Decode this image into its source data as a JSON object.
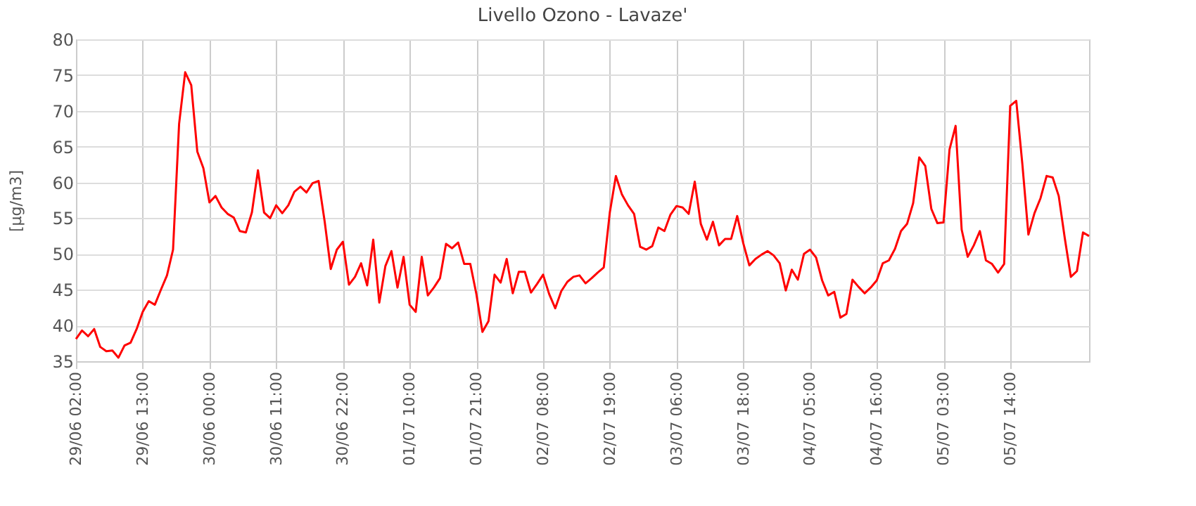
{
  "chart_data": {
    "type": "line",
    "title": "Livello Ozono - Lavaze'",
    "ylabel": "[µg/m3]",
    "categories": [
      "29/06 02:00",
      null,
      null,
      null,
      null,
      null,
      null,
      null,
      null,
      null,
      null,
      "29/06 13:00",
      null,
      null,
      null,
      null,
      null,
      null,
      null,
      null,
      null,
      null,
      "30/06 00:00",
      null,
      null,
      null,
      null,
      null,
      null,
      null,
      null,
      null,
      null,
      "30/06 11:00",
      null,
      null,
      null,
      null,
      null,
      null,
      null,
      null,
      null,
      null,
      "30/06 22:00",
      null,
      null,
      null,
      null,
      null,
      null,
      null,
      null,
      null,
      null,
      "01/07 10:00",
      null,
      null,
      null,
      null,
      null,
      null,
      null,
      null,
      null,
      null,
      "01/07 21:00",
      null,
      null,
      null,
      null,
      null,
      null,
      null,
      null,
      null,
      null,
      "02/07 08:00",
      null,
      null,
      null,
      null,
      null,
      null,
      null,
      null,
      null,
      null,
      "02/07 19:00",
      null,
      null,
      null,
      null,
      null,
      null,
      null,
      null,
      null,
      null,
      "03/07 06:00",
      null,
      null,
      null,
      null,
      null,
      null,
      null,
      null,
      null,
      null,
      "03/07 18:00",
      null,
      null,
      null,
      null,
      null,
      null,
      null,
      null,
      null,
      null,
      "04/07 05:00",
      null,
      null,
      null,
      null,
      null,
      null,
      null,
      null,
      null,
      null,
      "04/07 16:00",
      null,
      null,
      null,
      null,
      null,
      null,
      null,
      null,
      null,
      null,
      "05/07 03:00",
      null,
      null,
      null,
      null,
      null,
      null,
      null,
      null,
      null,
      null,
      "05/07 14:00",
      null,
      null,
      null,
      null,
      null,
      null,
      null,
      null,
      null,
      null,
      null,
      null,
      null
    ],
    "series": [
      {
        "color": "#ff0000",
        "values": [
          38.1,
          39.3,
          38.5,
          39.5,
          37.0,
          36.4,
          36.5,
          35.5,
          37.2,
          37.6,
          39.5,
          41.9,
          43.4,
          42.9,
          45.0,
          47.0,
          50.6,
          68.2,
          75.4,
          73.6,
          64.3,
          62.0,
          57.2,
          58.1,
          56.5,
          55.6,
          55.1,
          53.2,
          53.0,
          55.8,
          61.7,
          55.8,
          55.0,
          56.8,
          55.7,
          56.8,
          58.7,
          59.4,
          58.6,
          59.9,
          60.2,
          54.5,
          47.9,
          50.6,
          51.7,
          45.7,
          46.8,
          48.7,
          45.6,
          52.0,
          43.2,
          48.3,
          50.4,
          45.3,
          49.6,
          42.9,
          41.9,
          49.6,
          44.2,
          45.3,
          46.6,
          51.4,
          50.8,
          51.6,
          48.6,
          48.6,
          44.4,
          39.1,
          40.6,
          47.1,
          46.0,
          49.3,
          44.5,
          47.5,
          47.5,
          44.6,
          45.8,
          47.1,
          44.4,
          42.4,
          44.8,
          46.1,
          46.8,
          47.0,
          45.9,
          46.6,
          47.4,
          48.1,
          55.8,
          60.9,
          58.3,
          56.8,
          55.6,
          51.0,
          50.6,
          51.1,
          53.7,
          53.2,
          55.5,
          56.7,
          56.5,
          55.6,
          60.1,
          54.2,
          52.0,
          54.5,
          51.2,
          52.1,
          52.1,
          55.3,
          51.5,
          48.4,
          49.3,
          49.9,
          50.4,
          49.8,
          48.7,
          44.9,
          47.8,
          46.4,
          50.0,
          50.6,
          49.5,
          46.3,
          44.2,
          44.7,
          41.1,
          41.6,
          46.4,
          45.4,
          44.5,
          45.3,
          46.3,
          48.7,
          49.1,
          50.7,
          53.2,
          54.2,
          57.1,
          63.5,
          62.3,
          56.3,
          54.3,
          54.4,
          64.6,
          67.9,
          53.4,
          49.6,
          51.2,
          53.2,
          49.1,
          48.6,
          47.4,
          48.6,
          70.7,
          71.4,
          62.6,
          52.7,
          55.7,
          57.8,
          60.9,
          60.7,
          58.1,
          52.2,
          46.8,
          47.6,
          53.0,
          52.5
        ]
      }
    ],
    "ylim": [
      35,
      80
    ],
    "yticks": [
      35,
      40,
      45,
      50,
      55,
      60,
      65,
      70,
      75,
      80
    ],
    "grid": true,
    "marker": "none",
    "line_style": "solid",
    "legend": false
  }
}
